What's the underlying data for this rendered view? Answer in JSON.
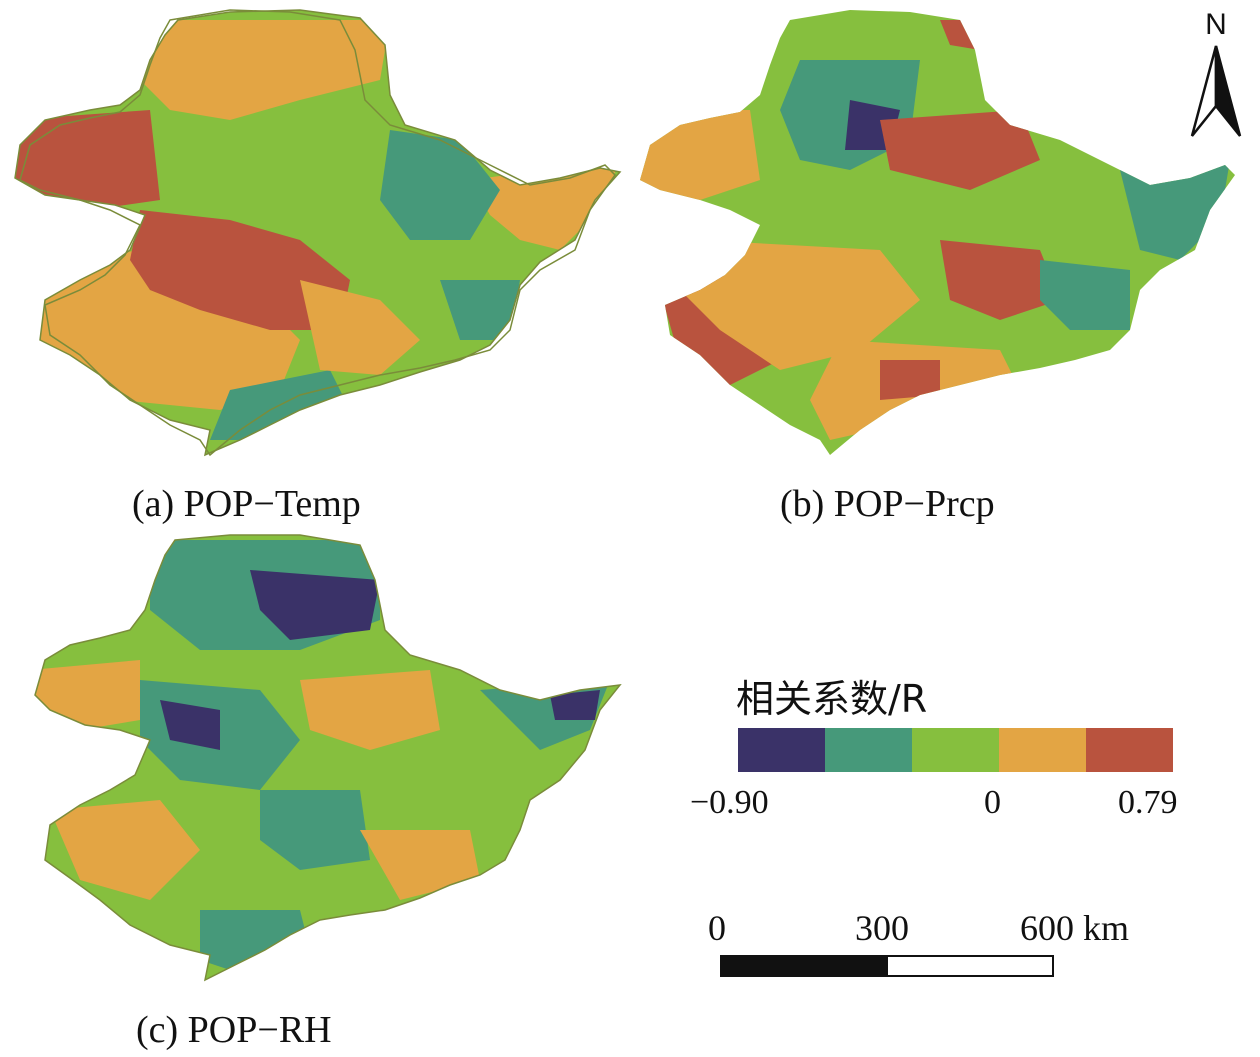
{
  "maps": [
    {
      "id": "a",
      "caption": "(a) POP−Temp"
    },
    {
      "id": "b",
      "caption": "(b) POP−Prcp"
    },
    {
      "id": "c",
      "caption": "(c) POP−RH"
    }
  ],
  "north_arrow": {
    "letter": "N"
  },
  "legend": {
    "title": "相关系数/R",
    "classes": [
      {
        "color": "#3a3268"
      },
      {
        "color": "#46997a"
      },
      {
        "color": "#86bf3e"
      },
      {
        "color": "#e3a544"
      },
      {
        "color": "#b9533e"
      }
    ],
    "tick_labels": [
      "−0.90",
      "0",
      "0.79"
    ]
  },
  "scale_bar": {
    "labels": [
      "0",
      "300",
      "600 km"
    ],
    "unit": "km"
  }
}
